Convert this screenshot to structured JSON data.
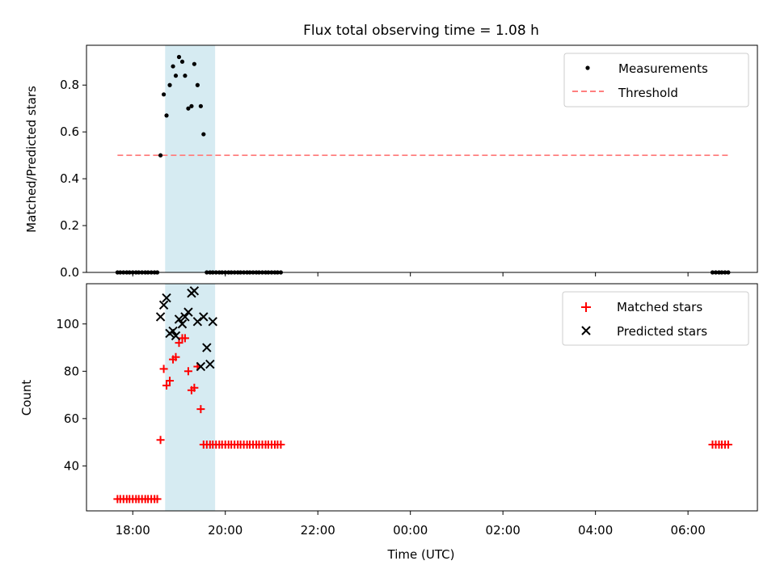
{
  "figure": {
    "title": "Flux total observing time = 1.08 h",
    "xlabel": "Time (UTC)"
  },
  "chart_data": [
    {
      "type": "scatter",
      "panel": "top",
      "ylabel": "Matched/Predicted stars",
      "xlim_hours": [
        17.0,
        31.5
      ],
      "ylim": [
        0.0,
        0.97
      ],
      "yticks": [
        0.0,
        0.2,
        0.4,
        0.6,
        0.8
      ],
      "ytick_labels": [
        "0.0",
        "0.2",
        "0.4",
        "0.6",
        "0.8"
      ],
      "highlight_span_hours": [
        18.7,
        19.78
      ],
      "threshold": {
        "name": "Threshold",
        "value": 0.5,
        "x_range_hours": [
          17.67,
          30.9
        ],
        "color": "#ff7f7f"
      },
      "series": [
        {
          "name": "Measurements",
          "color": "#000000",
          "marker": "dot",
          "x": [
            17.67,
            17.73,
            17.8,
            17.87,
            17.93,
            18.0,
            18.07,
            18.13,
            18.2,
            18.27,
            18.33,
            18.4,
            18.47,
            18.53,
            18.6,
            18.67,
            18.73,
            18.8,
            18.87,
            18.93,
            19.0,
            19.07,
            19.13,
            19.2,
            19.27,
            19.33,
            19.4,
            19.47,
            19.53,
            19.6,
            19.67,
            19.73,
            19.8,
            19.87,
            19.93,
            20.0,
            20.07,
            20.13,
            20.2,
            20.27,
            20.33,
            20.4,
            20.47,
            20.53,
            20.6,
            20.67,
            20.73,
            20.8,
            20.87,
            20.93,
            21.0,
            21.07,
            21.13,
            21.2,
            30.53,
            30.6,
            30.67,
            30.73,
            30.8,
            30.87
          ],
          "y": [
            0,
            0,
            0,
            0,
            0,
            0,
            0,
            0,
            0,
            0,
            0,
            0,
            0,
            0,
            0.5,
            0.76,
            0.67,
            0.8,
            0.88,
            0.84,
            0.92,
            0.9,
            0.84,
            0.7,
            0.71,
            0.89,
            0.8,
            0.71,
            0.59,
            0,
            0,
            0,
            0,
            0,
            0,
            0,
            0,
            0,
            0,
            0,
            0,
            0,
            0,
            0,
            0,
            0,
            0,
            0,
            0,
            0,
            0,
            0,
            0,
            0,
            0,
            0,
            0,
            0,
            0,
            0
          ]
        }
      ]
    },
    {
      "type": "scatter",
      "panel": "bottom",
      "ylabel": "Count",
      "xlim_hours": [
        17.0,
        31.5
      ],
      "ylim": [
        21,
        117
      ],
      "yticks": [
        40,
        60,
        80,
        100
      ],
      "ytick_labels": [
        "40",
        "60",
        "80",
        "100"
      ],
      "highlight_span_hours": [
        18.7,
        19.78
      ],
      "series": [
        {
          "name": "Matched stars",
          "color": "#ff0000",
          "marker": "plus",
          "x": [
            17.67,
            17.73,
            17.8,
            17.87,
            17.93,
            18.0,
            18.07,
            18.13,
            18.2,
            18.27,
            18.33,
            18.4,
            18.47,
            18.53,
            18.6,
            18.67,
            18.73,
            18.8,
            18.87,
            18.93,
            19.0,
            19.07,
            19.13,
            19.2,
            19.27,
            19.33,
            19.4,
            19.47,
            19.53,
            19.6,
            19.67,
            19.73,
            19.8,
            19.87,
            19.93,
            20.0,
            20.07,
            20.13,
            20.2,
            20.27,
            20.33,
            20.4,
            20.47,
            20.53,
            20.6,
            20.67,
            20.73,
            20.8,
            20.87,
            20.93,
            21.0,
            21.07,
            21.13,
            21.2,
            30.53,
            30.6,
            30.67,
            30.73,
            30.8,
            30.87
          ],
          "y": [
            26,
            26,
            26,
            26,
            26,
            26,
            26,
            26,
            26,
            26,
            26,
            26,
            26,
            26,
            51,
            81,
            74,
            76,
            85,
            86,
            92,
            94,
            94,
            80,
            72,
            73,
            82,
            64,
            49,
            49,
            49,
            49,
            49,
            49,
            49,
            49,
            49,
            49,
            49,
            49,
            49,
            49,
            49,
            49,
            49,
            49,
            49,
            49,
            49,
            49,
            49,
            49,
            49,
            49,
            49,
            49,
            49,
            49,
            49,
            49
          ]
        },
        {
          "name": "Predicted stars",
          "color": "#000000",
          "marker": "x",
          "x": [
            18.6,
            18.67,
            18.73,
            18.8,
            18.87,
            18.93,
            19.0,
            19.07,
            19.13,
            19.2,
            19.27,
            19.33,
            19.4,
            19.47,
            19.53,
            19.6,
            19.67,
            19.73
          ],
          "y": [
            103,
            108,
            111,
            96,
            97,
            95,
            102,
            100,
            103,
            105,
            113,
            114,
            101,
            82,
            103,
            90,
            83,
            101
          ]
        }
      ]
    }
  ],
  "xaxis": {
    "ticks_hours": [
      18,
      20,
      22,
      24,
      26,
      28,
      30
    ],
    "tick_labels": [
      "18:00",
      "20:00",
      "22:00",
      "00:00",
      "02:00",
      "04:00",
      "06:00"
    ]
  },
  "style": {
    "highlight_color": "#add8e6",
    "axis_color": "#000000",
    "legend_border": "#cccccc"
  }
}
